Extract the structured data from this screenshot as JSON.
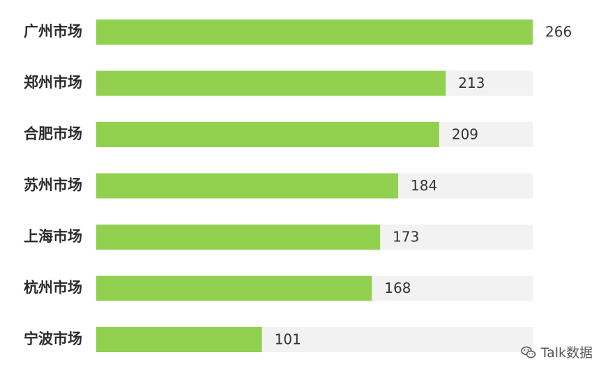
{
  "chart_data": {
    "type": "bar",
    "orientation": "horizontal",
    "categories": [
      "广州市场",
      "郑州市场",
      "合肥市场",
      "苏州市场",
      "上海市场",
      "杭州市场",
      "宁波市场"
    ],
    "values": [
      266,
      213,
      209,
      184,
      173,
      168,
      101
    ],
    "xlim": [
      0,
      266
    ],
    "grid": false,
    "colors": {
      "bar": "#92d050",
      "track": "#f2f2f2"
    }
  },
  "watermark": {
    "text": "Talk数据",
    "icon": "wechat-icon"
  }
}
